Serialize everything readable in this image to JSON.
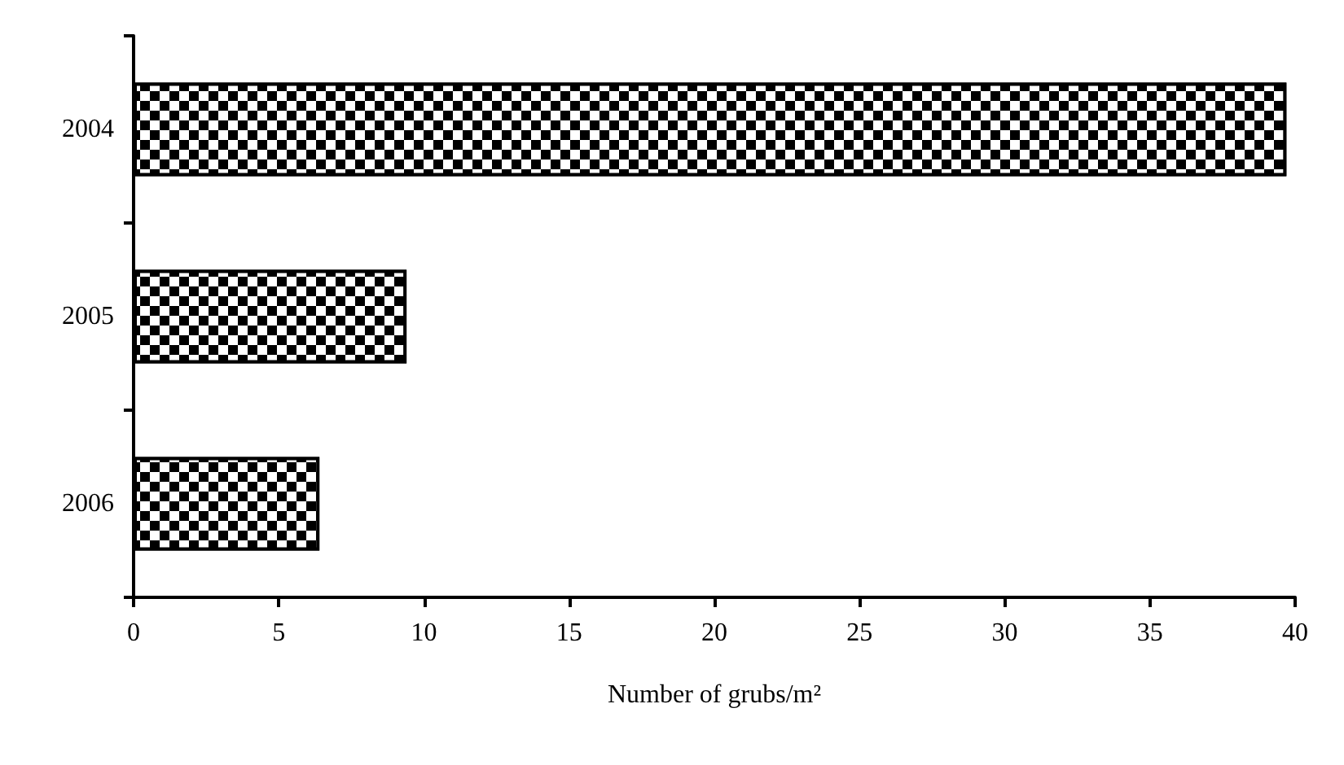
{
  "chart_data": {
    "type": "bar",
    "orientation": "horizontal",
    "xlabel": "Number of grubs/m²",
    "categories": [
      "2004",
      "2005",
      "2006"
    ],
    "values": [
      39.7,
      9.4,
      6.4
    ],
    "color": "#000000",
    "xlim": [
      0,
      40
    ],
    "xticks": [
      0,
      5,
      10,
      15,
      20,
      25,
      30,
      35,
      40
    ]
  }
}
